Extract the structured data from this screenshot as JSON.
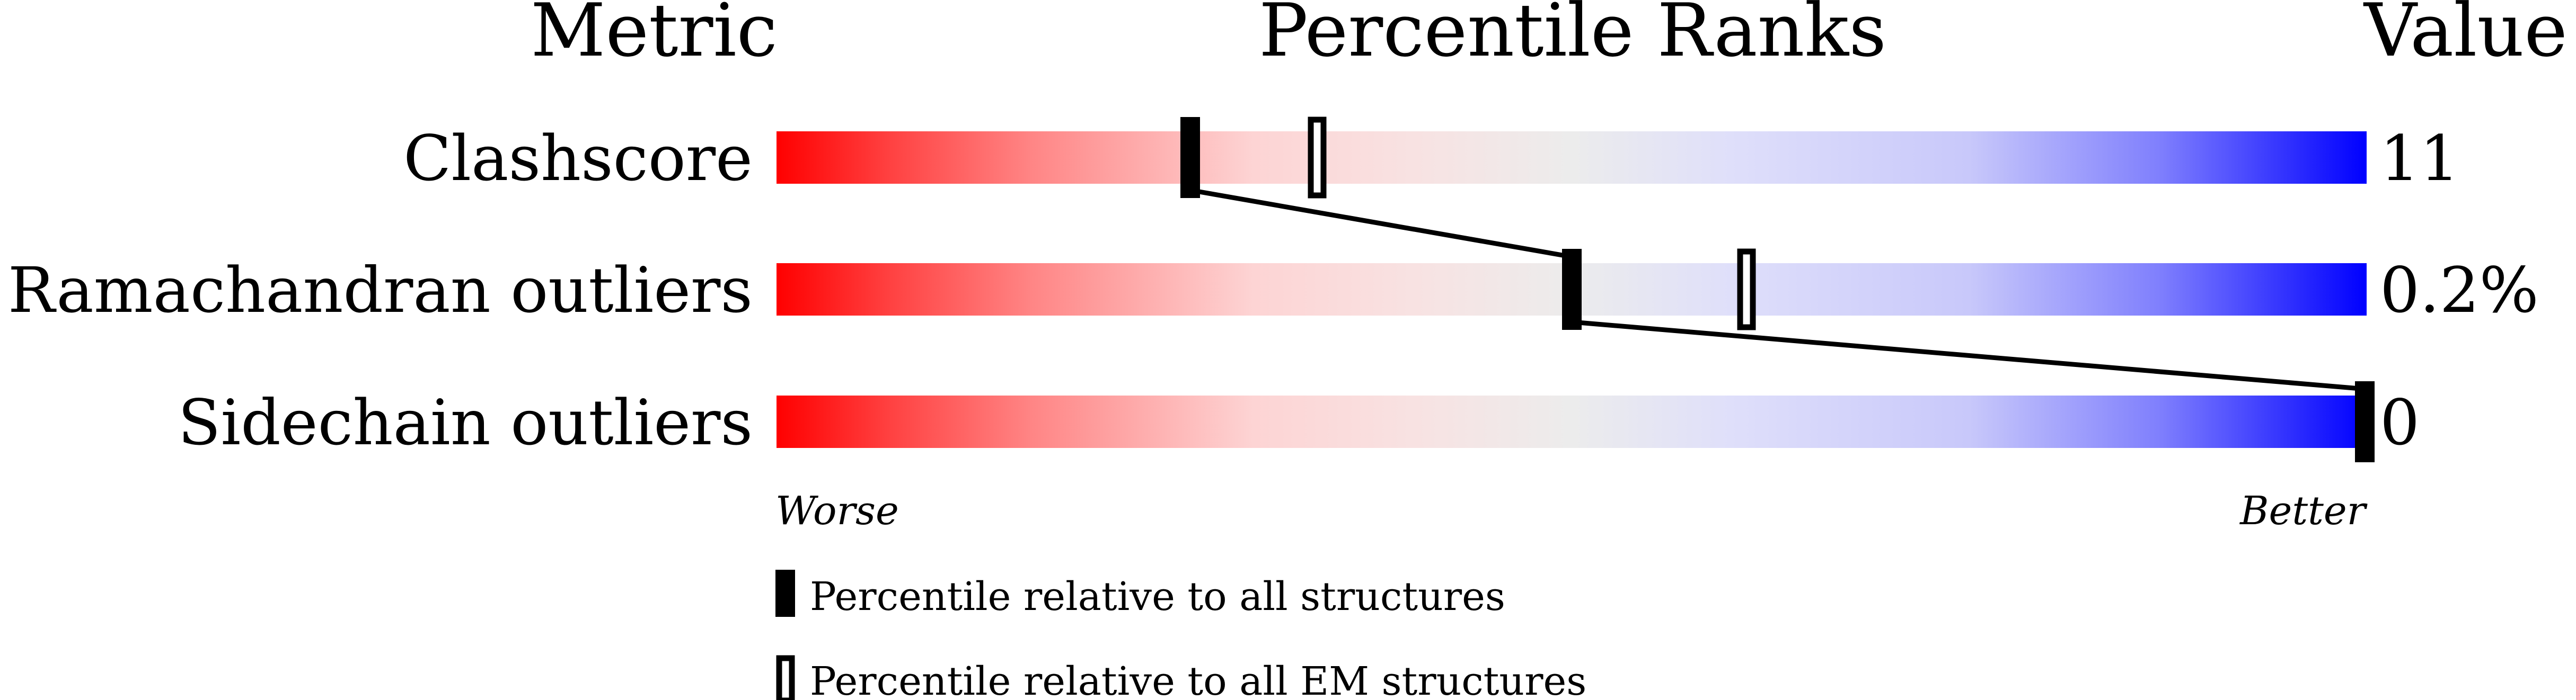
{
  "chart_data": {
    "type": "percentile_slider",
    "headers": {
      "metric": "Metric",
      "ranks": "Percentile Ranks",
      "value": "Value"
    },
    "xlim": [
      0,
      100
    ],
    "axis_labels": {
      "left": "Worse",
      "right": "Better"
    },
    "metrics": [
      {
        "name": "Clashscore",
        "value": "11",
        "percentile_all": 26,
        "percentile_em": 34
      },
      {
        "name": "Ramachandran outliers",
        "value": "0.2%",
        "percentile_all": 50,
        "percentile_em": 61
      },
      {
        "name": "Sidechain outliers",
        "value": "0",
        "percentile_all": 100,
        "percentile_em": null
      }
    ],
    "legend": [
      {
        "marker": "filled",
        "label": "Percentile relative to all structures"
      },
      {
        "marker": "hollow",
        "label": "Percentile relative to all EM structures"
      }
    ],
    "colors": {
      "worse": "#ff0000",
      "middle": "#eeeeee",
      "better": "#0000ff",
      "marker": "#000000"
    }
  }
}
